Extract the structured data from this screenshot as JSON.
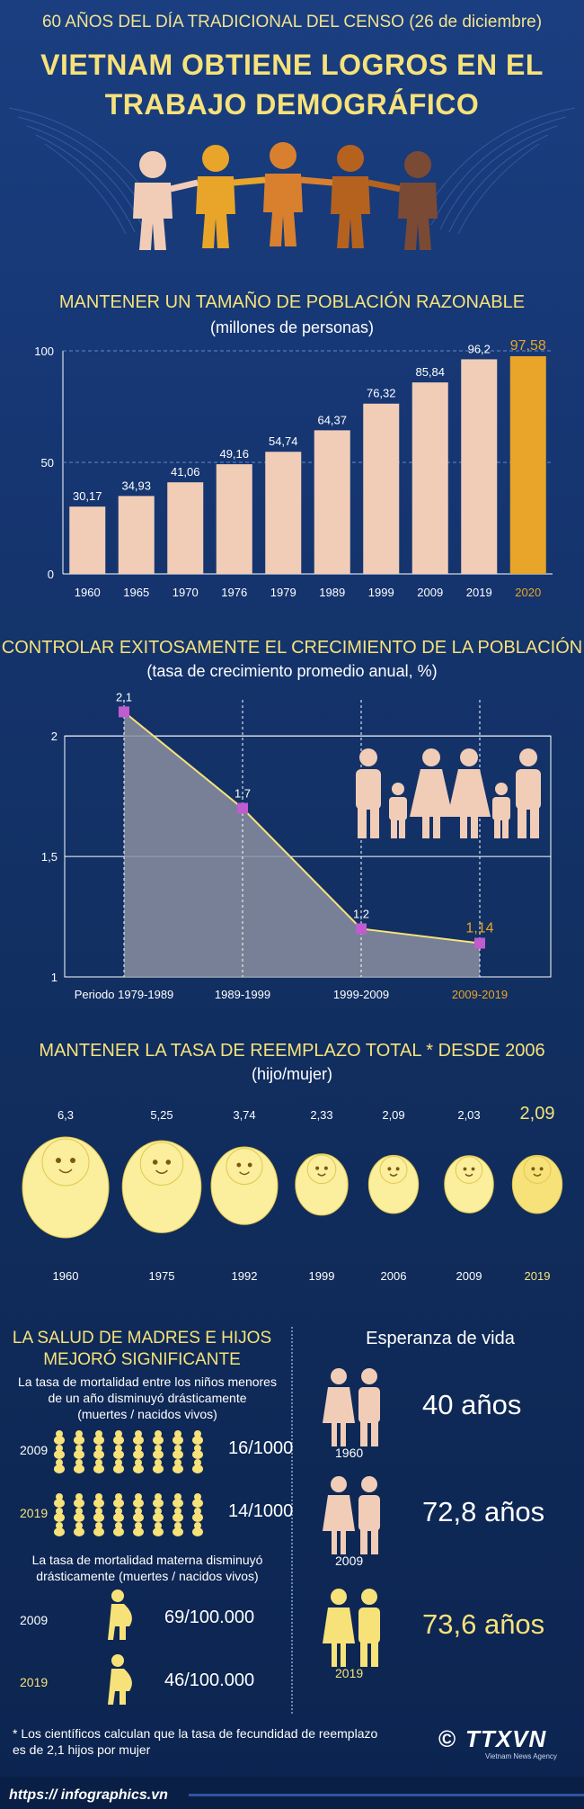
{
  "header": {
    "supertitle": "60 AÑOS DEL DÍA TRADICIONAL DEL CENSO (26 de diciembre)",
    "title_line1": "VIETNAM OBTIENE LOGROS EN EL",
    "title_line2": "TRABAJO DEMOGRÁFICO"
  },
  "section1": {
    "title": "MANTENER UN TAMAÑO DE POBLACIÓN RAZONABLE",
    "subtitle": "(millones de personas)"
  },
  "section2": {
    "title": "CONTROLAR EXITOSAMENTE EL CRECIMIENTO DE LA POBLACIÓN",
    "subtitle": "(tasa de crecimiento promedio anual, %)"
  },
  "section3": {
    "title": "MANTENER LA TASA DE REEMPLAZO TOTAL * DESDE 2006",
    "subtitle": "(hijo/mujer)"
  },
  "section4": {
    "title_line1": "LA SALUD DE MADRES E HIJOS",
    "title_line2": "MEJORÓ SIGNIFICANTE",
    "infant_desc_line1": "La tasa de mortalidad entre los niños menores",
    "infant_desc_line2": "de un año disminuyó drásticamente",
    "infant_desc_line3": "(muertes / nacidos vivos)",
    "infant": [
      {
        "year": "2009",
        "value": "16/1000"
      },
      {
        "year": "2019",
        "value": "14/1000"
      }
    ],
    "maternal_desc_line1": "La tasa de mortalidad materna disminuyó",
    "maternal_desc_line2": "drásticamente (muertes / nacidos vivos)",
    "maternal": [
      {
        "year": "2009",
        "value": "69/100.000"
      },
      {
        "year": "2019",
        "value": "46/100.000"
      }
    ]
  },
  "section5": {
    "title": "Esperanza de vida",
    "items": [
      {
        "year": "1960",
        "value": "40 años"
      },
      {
        "year": "2009",
        "value": "72,8  años"
      },
      {
        "year": "2019",
        "value": "73,6  años"
      }
    ]
  },
  "footnote_line1": "* Los científicos calculan que la tasa de fecundidad de reemplazo",
  "footnote_line2": "es de 2,1 hijos por mujer",
  "logo_text": "TTXVN",
  "logo_sub": "Vietnam News Agency",
  "logo_copyright": "©",
  "footer_url": "https:// infographics.vn",
  "colors": {
    "bar": "#f1cdb8",
    "highlight": "#e8a529",
    "accent": "#f7e27a",
    "area": "#8a8ea0",
    "marker": "#c05ccf"
  },
  "chart_data": [
    {
      "type": "bar",
      "title": "MANTENER UN TAMAÑO DE POBLACIÓN RAZONABLE",
      "ylabel": "(millones de personas)",
      "categories": [
        "1960",
        "1965",
        "1970",
        "1976",
        "1979",
        "1989",
        "1999",
        "2009",
        "2019",
        "2020"
      ],
      "values": [
        30.17,
        34.93,
        41.06,
        49.16,
        54.74,
        64.37,
        76.32,
        85.84,
        96.2,
        97.58
      ],
      "labels": [
        "30,17",
        "34,93",
        "41,06",
        "49,16",
        "54,74",
        "64,37",
        "76,32",
        "85,84",
        "96,2",
        "97,58"
      ],
      "yticks": [
        "0",
        "50",
        "100"
      ],
      "ylim": [
        0,
        100
      ],
      "highlight_index": 9
    },
    {
      "type": "area",
      "title": "CONTROLAR EXITOSAMENTE EL CRECIMIENTO DE LA POBLACIÓN",
      "ylabel": "(tasa de crecimiento promedio anual, %)",
      "categories": [
        "Periodo 1979-1989",
        "1989-1999",
        "1999-2009",
        "2009-2019"
      ],
      "values": [
        2.1,
        1.7,
        1.2,
        1.14
      ],
      "labels": [
        "2,1",
        "1,7",
        "1,2",
        "1,14"
      ],
      "yticks": [
        "1",
        "1,5",
        "2"
      ],
      "ylim": [
        1,
        2.15
      ],
      "highlight_index": 3
    },
    {
      "type": "scatter",
      "title": "MANTENER LA TASA DE REEMPLAZO TOTAL * DESDE 2006",
      "ylabel": "(hijo/mujer)",
      "categories": [
        "1960",
        "1975",
        "1992",
        "1999",
        "2006",
        "2009",
        "2019"
      ],
      "values": [
        6.3,
        5.25,
        3.74,
        2.33,
        2.09,
        2.03,
        2.09
      ],
      "labels": [
        "6,3",
        "5,25",
        "3,74",
        "2,33",
        "2,09",
        "2,03",
        "2,09"
      ],
      "highlight_index": 6
    }
  ]
}
